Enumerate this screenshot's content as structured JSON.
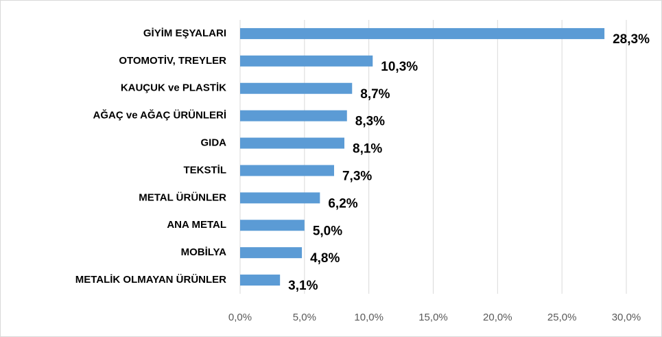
{
  "chart_data": {
    "type": "bar",
    "orientation": "horizontal",
    "categories": [
      "GİYİM EŞYALARI",
      "OTOMOTİV, TREYLER",
      "KAUÇUK ve PLASTİK",
      "AĞAÇ ve AĞAÇ ÜRÜNLERİ",
      "GIDA",
      "TEKSTİL",
      "METAL ÜRÜNLER",
      "ANA METAL",
      "MOBİLYA",
      "METALİK OLMAYAN ÜRÜNLER"
    ],
    "values": [
      28.3,
      10.3,
      8.7,
      8.3,
      8.1,
      7.3,
      6.2,
      5.0,
      4.8,
      3.1
    ],
    "value_labels": [
      "28,3%",
      "10,3%",
      "8,7%",
      "8,3%",
      "8,1%",
      "7,3%",
      "6,2%",
      "5,0%",
      "4,8%",
      "3,1%"
    ],
    "color": "#5b9bd5",
    "xlim": [
      0,
      30
    ],
    "xticks": [
      {
        "value": 0,
        "label": "0,0%"
      },
      {
        "value": 5,
        "label": "5,0%"
      },
      {
        "value": 10,
        "label": "10,0%"
      },
      {
        "value": 15,
        "label": "15,0%"
      },
      {
        "value": 20,
        "label": "20,0%"
      },
      {
        "value": 25,
        "label": "25,0%"
      },
      {
        "value": 30,
        "label": "30,0%"
      }
    ],
    "grid": true
  }
}
